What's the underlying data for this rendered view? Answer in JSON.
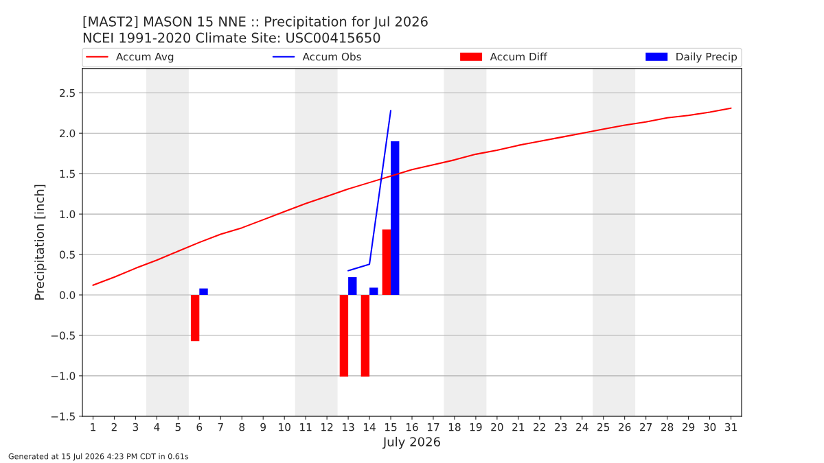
{
  "chart_data": {
    "type": "bar",
    "title": "[MAST2] MASON 15 NNE :: Precipitation for Jul 2026",
    "subtitle": "NCEI 1991-2020 Climate Site: USC00415650",
    "xlabel": "July 2026",
    "ylabel": "Precipitation [inch]",
    "x": [
      1,
      2,
      3,
      4,
      5,
      6,
      7,
      8,
      9,
      10,
      11,
      12,
      13,
      14,
      15,
      16,
      17,
      18,
      19,
      20,
      21,
      22,
      23,
      24,
      25,
      26,
      27,
      28,
      29,
      30,
      31
    ],
    "series": [
      {
        "name": "Accum Avg",
        "type": "line",
        "color": "#ff0000",
        "values": [
          0.12,
          0.22,
          0.33,
          0.43,
          0.54,
          0.65,
          0.75,
          0.83,
          0.93,
          1.03,
          1.13,
          1.22,
          1.31,
          1.39,
          1.47,
          1.55,
          1.61,
          1.67,
          1.74,
          1.79,
          1.85,
          1.9,
          1.95,
          2.0,
          2.05,
          2.1,
          2.14,
          2.19,
          2.22,
          2.26,
          2.31
        ]
      },
      {
        "name": "Accum Obs",
        "type": "line",
        "color": "#0000ff",
        "values": [
          null,
          null,
          null,
          null,
          null,
          null,
          null,
          null,
          null,
          null,
          null,
          null,
          0.3,
          0.38,
          2.28,
          null,
          null,
          null,
          null,
          null,
          null,
          null,
          null,
          null,
          null,
          null,
          null,
          null,
          null,
          null,
          null
        ]
      },
      {
        "name": "Accum Diff",
        "color": "#ff0000",
        "values": [
          null,
          null,
          null,
          null,
          null,
          -0.57,
          null,
          null,
          null,
          null,
          null,
          null,
          -1.01,
          -1.01,
          0.81,
          null,
          null,
          null,
          null,
          null,
          null,
          null,
          null,
          null,
          null,
          null,
          null,
          null,
          null,
          null,
          null
        ]
      },
      {
        "name": "Daily Precip",
        "color": "#0000ff",
        "values": [
          null,
          null,
          null,
          null,
          null,
          0.08,
          null,
          null,
          null,
          null,
          null,
          null,
          0.22,
          0.09,
          1.9,
          null,
          null,
          null,
          null,
          null,
          null,
          null,
          null,
          null,
          null,
          null,
          null,
          null,
          null,
          null,
          null
        ]
      }
    ],
    "xlim": [
      0.5,
      31.5
    ],
    "xticks": [
      1,
      2,
      3,
      4,
      5,
      6,
      7,
      8,
      9,
      10,
      11,
      12,
      13,
      14,
      15,
      16,
      17,
      18,
      19,
      20,
      21,
      22,
      23,
      24,
      25,
      26,
      27,
      28,
      29,
      30,
      31
    ],
    "ylim": [
      -1.5,
      2.8
    ],
    "yticks": [
      {
        "value": -1.5,
        "label": "−1.5"
      },
      {
        "value": -1.0,
        "label": "−1.0"
      },
      {
        "value": -0.5,
        "label": "−0.5"
      },
      {
        "value": 0,
        "label": "0.0"
      },
      {
        "value": 0.5,
        "label": "0.5"
      },
      {
        "value": 1.0,
        "label": "1.0"
      },
      {
        "value": 1.5,
        "label": "1.5"
      },
      {
        "value": 2.0,
        "label": "2.0"
      },
      {
        "value": 2.5,
        "label": "2.5"
      }
    ],
    "bands": [
      {
        "axis": "x",
        "from": 3.5,
        "to": 5.5,
        "color": "#eeeeee"
      },
      {
        "axis": "x",
        "from": 10.5,
        "to": 12.5,
        "color": "#eeeeee"
      },
      {
        "axis": "x",
        "from": 17.5,
        "to": 19.5,
        "color": "#eeeeee"
      },
      {
        "axis": "x",
        "from": 24.5,
        "to": 26.5,
        "color": "#eeeeee"
      }
    ],
    "grid": "y",
    "legend": "top",
    "annotations": [
      "Generated at 15 Jul 2026 4:23 PM CDT in 0.61s"
    ]
  }
}
